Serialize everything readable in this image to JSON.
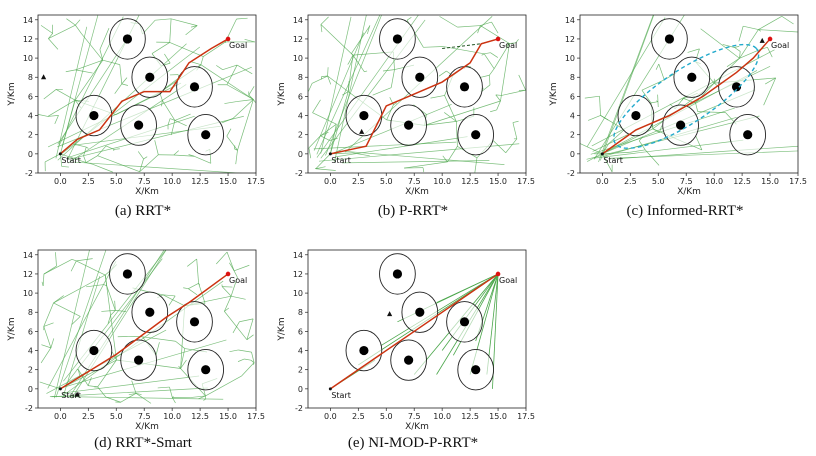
{
  "figure": {
    "panel_order": [
      "a",
      "b",
      "c",
      "d",
      "e"
    ]
  },
  "colors": {
    "tree": "#4aa64a",
    "path": "#cc3311",
    "ellipse": "#22aacc",
    "goal": "#dd1111",
    "obstacle": "#000000"
  },
  "chart_data": [
    {
      "id": "a",
      "type": "scatter",
      "caption": "(a)  RRT*",
      "xlabel": "X/Km",
      "ylabel": "Y/Km",
      "xlim": [
        -2,
        17.5
      ],
      "ylim": [
        -2,
        14.5
      ],
      "xticks": [
        0,
        2.5,
        5,
        7.5,
        10,
        12.5,
        15,
        17.5
      ],
      "xtick_labels": [
        "0.0",
        "2.5",
        "5.0",
        "7.5",
        "10.0",
        "12.5",
        "15.0",
        "17.5"
      ],
      "yticks": [
        -2,
        0,
        2,
        4,
        6,
        8,
        10,
        12,
        14
      ],
      "start": {
        "x": 0,
        "y": 0,
        "label": "Start"
      },
      "goal": {
        "x": 15,
        "y": 12,
        "label": "Goal"
      },
      "obstacles": [
        {
          "x": 6,
          "y": 12
        },
        {
          "x": 8,
          "y": 8
        },
        {
          "x": 12,
          "y": 7
        },
        {
          "x": 3,
          "y": 4
        },
        {
          "x": 7,
          "y": 3
        },
        {
          "x": 13,
          "y": 2
        }
      ],
      "obstacle_radius": 1.6,
      "marker": {
        "x": -1.5,
        "y": 8
      },
      "path": [
        [
          0,
          0
        ],
        [
          1.5,
          1.5
        ],
        [
          3.5,
          2.5
        ],
        [
          5.5,
          5.5
        ],
        [
          7.5,
          6.5
        ],
        [
          9.8,
          6.5
        ],
        [
          11.5,
          9.5
        ],
        [
          13.5,
          11
        ],
        [
          15,
          12
        ]
      ],
      "tree_density": 120
    },
    {
      "id": "b",
      "type": "scatter",
      "caption": "(b)  P-RRT*",
      "xlabel": "X/Km",
      "ylabel": "Y/Km",
      "xlim": [
        -2,
        17.5
      ],
      "ylim": [
        -2,
        14.5
      ],
      "xticks": [
        0,
        2.5,
        5,
        7.5,
        10,
        12.5,
        15,
        17.5
      ],
      "xtick_labels": [
        "0.0",
        "2.5",
        "5.0",
        "7.5",
        "10.0",
        "12.5",
        "15.0",
        "17.5"
      ],
      "yticks": [
        -2,
        0,
        2,
        4,
        6,
        8,
        10,
        12,
        14
      ],
      "start": {
        "x": 0,
        "y": 0,
        "label": "Start"
      },
      "goal": {
        "x": 15,
        "y": 12,
        "label": "Goal"
      },
      "obstacles": [
        {
          "x": 6,
          "y": 12
        },
        {
          "x": 8,
          "y": 8
        },
        {
          "x": 12,
          "y": 7
        },
        {
          "x": 3,
          "y": 4
        },
        {
          "x": 7,
          "y": 3
        },
        {
          "x": 13,
          "y": 2
        }
      ],
      "obstacle_radius": 1.6,
      "marker": {
        "x": 2.8,
        "y": 2.3
      },
      "path": [
        [
          0,
          0
        ],
        [
          2,
          0.5
        ],
        [
          3.2,
          0.8
        ],
        [
          5,
          5
        ],
        [
          7,
          6
        ],
        [
          10,
          7.5
        ],
        [
          12.5,
          9.5
        ],
        [
          13.5,
          11.5
        ],
        [
          15,
          12
        ]
      ],
      "dashed_path": [
        [
          10,
          11
        ],
        [
          13.5,
          11.5
        ],
        [
          15,
          12
        ]
      ],
      "tree_density": 110
    },
    {
      "id": "c",
      "type": "scatter",
      "caption": "(c)  Informed-RRT*",
      "xlabel": "X/Km",
      "ylabel": "Y/Km",
      "xlim": [
        -2,
        17.5
      ],
      "ylim": [
        -2,
        14.5
      ],
      "xticks": [
        0,
        2.5,
        5,
        7.5,
        10,
        12.5,
        15,
        17.5
      ],
      "xtick_labels": [
        "0.0",
        "2.5",
        "5.0",
        "7.5",
        "10.0",
        "12.5",
        "15.0",
        "17.5"
      ],
      "yticks": [
        -2,
        0,
        2,
        4,
        6,
        8,
        10,
        12,
        14
      ],
      "start": {
        "x": 0,
        "y": 0,
        "label": "Start"
      },
      "goal": {
        "x": 15,
        "y": 12,
        "label": "Goal"
      },
      "obstacles": [
        {
          "x": 6,
          "y": 12
        },
        {
          "x": 8,
          "y": 8
        },
        {
          "x": 12,
          "y": 7
        },
        {
          "x": 3,
          "y": 4
        },
        {
          "x": 7,
          "y": 3
        },
        {
          "x": 13,
          "y": 2
        }
      ],
      "obstacle_radius": 1.6,
      "marker": {
        "x": 14.3,
        "y": 11.8
      },
      "path": [
        [
          0,
          0
        ],
        [
          3,
          2.5
        ],
        [
          6,
          4
        ],
        [
          9,
          6
        ],
        [
          12,
          8.5
        ],
        [
          13.5,
          10
        ],
        [
          15,
          12
        ]
      ],
      "ellipse": {
        "cx": 7.5,
        "cy": 6,
        "a": 10.3,
        "b": 2.6,
        "angle_deg": 38.66
      },
      "tree_density": 70
    },
    {
      "id": "d",
      "type": "scatter",
      "caption": "(d)  RRT*-Smart",
      "xlabel": "X/Km",
      "ylabel": "Y/Km",
      "xlim": [
        -2,
        17.5
      ],
      "ylim": [
        -2,
        14.5
      ],
      "xticks": [
        0,
        2.5,
        5,
        7.5,
        10,
        12.5,
        15,
        17.5
      ],
      "xtick_labels": [
        "0.0",
        "2.5",
        "5.0",
        "7.5",
        "10.0",
        "12.5",
        "15.0",
        "17.5"
      ],
      "yticks": [
        -2,
        0,
        2,
        4,
        6,
        8,
        10,
        12,
        14
      ],
      "start": {
        "x": 0,
        "y": 0,
        "label": "Start"
      },
      "goal": {
        "x": 15,
        "y": 12,
        "label": "Goal"
      },
      "obstacles": [
        {
          "x": 6,
          "y": 12
        },
        {
          "x": 8,
          "y": 8
        },
        {
          "x": 12,
          "y": 7
        },
        {
          "x": 3,
          "y": 4
        },
        {
          "x": 7,
          "y": 3
        },
        {
          "x": 13,
          "y": 2
        }
      ],
      "obstacle_radius": 1.6,
      "marker": {
        "x": 1.5,
        "y": -0.6
      },
      "path": [
        [
          0,
          0
        ],
        [
          5,
          3.6
        ],
        [
          9.5,
          7.5
        ],
        [
          11.5,
          9
        ],
        [
          15,
          12
        ]
      ],
      "tree_density": 115
    },
    {
      "id": "e",
      "type": "scatter",
      "caption": "(e)  NI-MOD-P-RRT*",
      "xlabel": "X/Km",
      "ylabel": "Y/Km",
      "xlim": [
        -2,
        17.5
      ],
      "ylim": [
        -2,
        14.5
      ],
      "xticks": [
        0,
        2.5,
        5,
        7.5,
        10,
        12.5,
        15,
        17.5
      ],
      "xtick_labels": [
        "0.0",
        "2.5",
        "5.0",
        "7.5",
        "10.0",
        "12.5",
        "15.0",
        "17.5"
      ],
      "yticks": [
        -2,
        0,
        2,
        4,
        6,
        8,
        10,
        12,
        14
      ],
      "start": {
        "x": 0,
        "y": 0,
        "label": "Start"
      },
      "goal": {
        "x": 15,
        "y": 12,
        "label": "Goal"
      },
      "obstacles": [
        {
          "x": 6,
          "y": 12
        },
        {
          "x": 8,
          "y": 8
        },
        {
          "x": 12,
          "y": 7
        },
        {
          "x": 3,
          "y": 4
        },
        {
          "x": 7,
          "y": 3
        },
        {
          "x": 13,
          "y": 2
        }
      ],
      "obstacle_radius": 1.6,
      "marker": {
        "x": 5.3,
        "y": 7.8
      },
      "path": [
        [
          0,
          0
        ],
        [
          15,
          12
        ]
      ],
      "goal_fan": [
        [
          7.5,
          1.5
        ],
        [
          9.5,
          1.5
        ],
        [
          11,
          3.5
        ],
        [
          12.5,
          1.5
        ],
        [
          14,
          1.5
        ],
        [
          14.5,
          0
        ],
        [
          10,
          4
        ],
        [
          9.5,
          9
        ],
        [
          13,
          5
        ],
        [
          6,
          7
        ],
        [
          4.5,
          4.5
        ],
        [
          2.5,
          2.5
        ]
      ],
      "tree_density": 0
    }
  ]
}
